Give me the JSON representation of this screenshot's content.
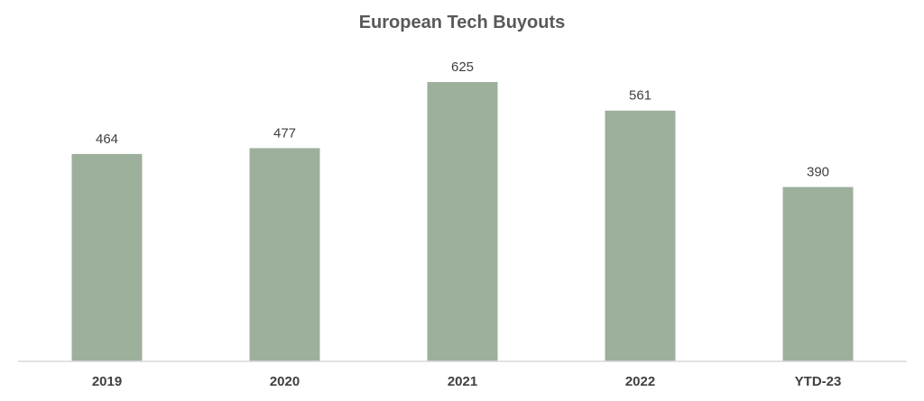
{
  "chart_data": {
    "type": "bar",
    "title": "European Tech Buyouts",
    "categories": [
      "2019",
      "2020",
      "2021",
      "2022",
      "YTD-23"
    ],
    "values": [
      464,
      477,
      625,
      561,
      390
    ],
    "xlabel": "",
    "ylabel": "",
    "ylim": [
      0,
      700
    ],
    "grid": false,
    "legend": "none",
    "bar_color": "#9cb09c",
    "axis_color": "#d9d9d9",
    "text_color": "#404040"
  }
}
